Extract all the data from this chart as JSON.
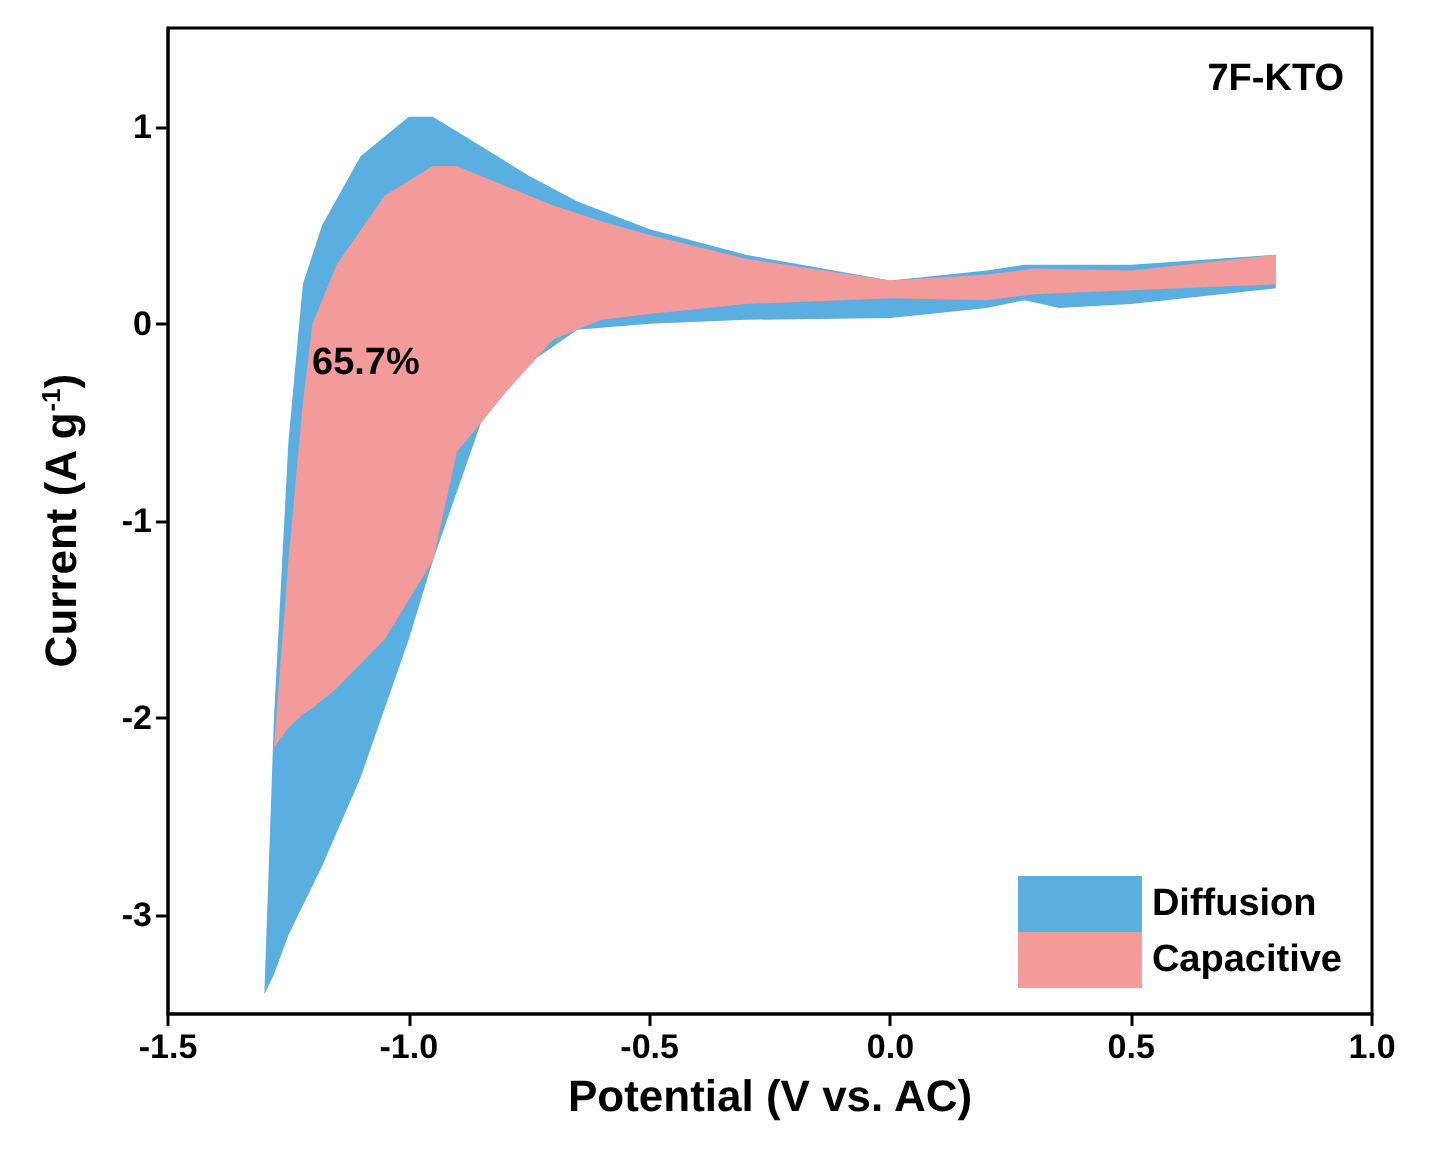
{
  "chart_data": {
    "type": "area",
    "xlabel": "Potential (V vs. AC)",
    "ylabel": "Current (A g$^{-1}$)",
    "annotations": [
      "7F-KTO",
      "65.7%"
    ],
    "xlim": [
      -1.5,
      1.0
    ],
    "ylim": [
      -3.5,
      1.5
    ],
    "xticks": [
      -1.5,
      {
        "value": -1,
        "label": "-1.0"
      },
      -0.5,
      {
        "value": 0,
        "label": "0.0"
      },
      0.5,
      {
        "value": 1,
        "label": "1.0"
      }
    ],
    "yticks": [
      -3,
      -2,
      -1,
      0,
      1
    ],
    "grid": false,
    "legend": "bottom right",
    "series": [
      {
        "name": "Diffusion",
        "color": "#5aaee0",
        "x": [
          -1.3,
          -1.28,
          -1.25,
          -1.22,
          -1.18,
          -1.1,
          -1.0,
          -0.95,
          -0.85,
          -0.75,
          -0.65,
          -0.5,
          -0.3,
          0.0,
          0.2,
          0.28,
          0.35,
          0.5,
          0.8,
          0.8,
          0.5,
          0.35,
          0.28,
          0.2,
          0.0,
          -0.3,
          -0.5,
          -0.65,
          -0.75,
          -0.85,
          -0.95,
          -1.0,
          -1.1,
          -1.18,
          -1.22,
          -1.25,
          -1.28
        ],
        "values": [
          -3.4,
          -2.0,
          -0.6,
          0.2,
          0.5,
          0.85,
          1.05,
          1.05,
          0.9,
          0.75,
          0.62,
          0.48,
          0.35,
          0.22,
          0.27,
          0.3,
          0.3,
          0.3,
          0.35,
          0.18,
          0.1,
          0.08,
          0.12,
          0.08,
          0.03,
          0.02,
          0.0,
          -0.03,
          -0.2,
          -0.5,
          -1.2,
          -1.6,
          -2.3,
          -2.75,
          -2.95,
          -3.1,
          -3.3
        ]
      },
      {
        "name": "Capacitive",
        "color": "#f39a9a",
        "x": [
          -1.28,
          -1.25,
          -1.22,
          -1.2,
          -1.15,
          -1.05,
          -0.95,
          -0.9,
          -0.85,
          -0.8,
          -0.7,
          -0.6,
          -0.5,
          -0.3,
          0.0,
          0.2,
          0.3,
          0.5,
          0.8,
          0.8,
          0.5,
          0.3,
          0.2,
          0.0,
          -0.3,
          -0.5,
          -0.6,
          -0.7,
          -0.8,
          -0.85,
          -0.9,
          -0.95,
          -1.05,
          -1.15,
          -1.2,
          -1.22,
          -1.25
        ],
        "values": [
          -2.15,
          -1.2,
          -0.4,
          0.0,
          0.3,
          0.65,
          0.8,
          0.8,
          0.75,
          0.7,
          0.6,
          0.52,
          0.45,
          0.33,
          0.22,
          0.25,
          0.28,
          0.27,
          0.35,
          0.2,
          0.17,
          0.15,
          0.12,
          0.13,
          0.1,
          0.05,
          0.02,
          -0.08,
          -0.35,
          -0.5,
          -0.65,
          -1.2,
          -1.6,
          -1.85,
          -1.95,
          -1.98,
          -2.05
        ]
      }
    ]
  }
}
